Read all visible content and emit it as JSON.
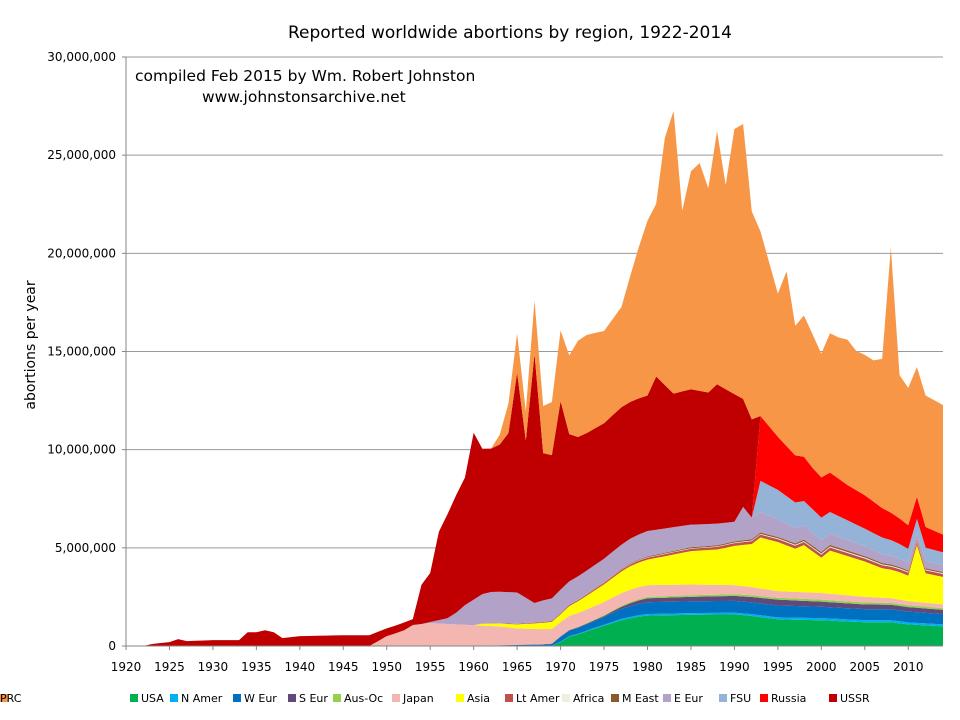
{
  "chart_data": {
    "type": "area",
    "stacked": true,
    "title": "Reported worldwide abortions by region, 1922-2014",
    "annotation_lines": [
      "compiled Feb 2015 by Wm. Robert Johnston",
      "www.johnstonsarchive.net"
    ],
    "xlabel": "",
    "ylabel": "abortions per year",
    "xlim": [
      1920,
      2014
    ],
    "ylim": [
      0,
      30000000
    ],
    "x_ticks": [
      "1920",
      "1925",
      "1930",
      "1935",
      "1940",
      "1945",
      "1950",
      "1955",
      "1960",
      "1965",
      "1970",
      "1975",
      "1980",
      "1985",
      "1990",
      "1995",
      "2000",
      "2005",
      "2010"
    ],
    "y_ticks": [
      "0",
      "5,000,000",
      "10,000,000",
      "15,000,000",
      "20,000,000",
      "25,000,000",
      "30,000,000"
    ],
    "grid": "horizontal",
    "legend_position": "bottom",
    "series": [
      {
        "name": "USA",
        "color": "#00b050",
        "points": [
          [
            1968,
            0
          ],
          [
            1969,
            20000
          ],
          [
            1970,
            200000
          ],
          [
            1971,
            480000
          ],
          [
            1972,
            590000
          ],
          [
            1973,
            740000
          ],
          [
            1974,
            900000
          ],
          [
            1975,
            1030000
          ],
          [
            1976,
            1180000
          ],
          [
            1977,
            1320000
          ],
          [
            1978,
            1410000
          ],
          [
            1979,
            1500000
          ],
          [
            1980,
            1550000
          ],
          [
            1985,
            1590000
          ],
          [
            1990,
            1610000
          ],
          [
            1992,
            1530000
          ],
          [
            1995,
            1360000
          ],
          [
            2000,
            1310000
          ],
          [
            2005,
            1210000
          ],
          [
            2008,
            1210000
          ],
          [
            2010,
            1100000
          ],
          [
            2014,
            1000000
          ]
        ]
      },
      {
        "name": "N Amer",
        "color": "#00b0f0",
        "points": [
          [
            1969,
            0
          ],
          [
            1970,
            20000
          ],
          [
            1975,
            50000
          ],
          [
            1980,
            80000
          ],
          [
            1990,
            90000
          ],
          [
            2000,
            110000
          ],
          [
            2014,
            100000
          ]
        ]
      },
      {
        "name": "W Eur",
        "color": "#0070c0",
        "points": [
          [
            1960,
            0
          ],
          [
            1965,
            50000
          ],
          [
            1969,
            80000
          ],
          [
            1970,
            250000
          ],
          [
            1974,
            350000
          ],
          [
            1976,
            450000
          ],
          [
            1978,
            550000
          ],
          [
            1980,
            600000
          ],
          [
            1985,
            600000
          ],
          [
            1990,
            600000
          ],
          [
            1995,
            600000
          ],
          [
            2000,
            580000
          ],
          [
            2005,
            560000
          ],
          [
            2010,
            550000
          ],
          [
            2014,
            520000
          ]
        ]
      },
      {
        "name": "S Eur",
        "color": "#604a7b",
        "points": [
          [
            1960,
            0
          ],
          [
            1970,
            20000
          ],
          [
            1975,
            50000
          ],
          [
            1978,
            150000
          ],
          [
            1980,
            200000
          ],
          [
            1985,
            230000
          ],
          [
            1990,
            250000
          ],
          [
            1993,
            280000
          ],
          [
            1995,
            300000
          ],
          [
            2000,
            260000
          ],
          [
            2005,
            240000
          ],
          [
            2010,
            230000
          ],
          [
            2014,
            220000
          ]
        ]
      },
      {
        "name": "Aus-Oc",
        "color": "#92d050",
        "points": [
          [
            1970,
            0
          ],
          [
            1975,
            40000
          ],
          [
            1980,
            70000
          ],
          [
            1990,
            90000
          ],
          [
            2000,
            100000
          ],
          [
            2014,
            90000
          ]
        ]
      },
      {
        "name": "Japan",
        "color": "#f4b6b0",
        "points": [
          [
            1948,
            0
          ],
          [
            1949,
            250000
          ],
          [
            1950,
            500000
          ],
          [
            1951,
            640000
          ],
          [
            1952,
            800000
          ],
          [
            1953,
            1070000
          ],
          [
            1955,
            1170000
          ],
          [
            1957,
            1120000
          ],
          [
            1960,
            1060000
          ],
          [
            1963,
            960000
          ],
          [
            1965,
            840000
          ],
          [
            1970,
            730000
          ],
          [
            1975,
            670000
          ],
          [
            1980,
            600000
          ],
          [
            1985,
            550000
          ],
          [
            1990,
            460000
          ],
          [
            1995,
            340000
          ],
          [
            2000,
            340000
          ],
          [
            2005,
            290000
          ],
          [
            2010,
            210000
          ],
          [
            2014,
            190000
          ]
        ]
      },
      {
        "name": "Asia",
        "color": "#ffff00",
        "points": [
          [
            1960,
            0
          ],
          [
            1961,
            100000
          ],
          [
            1965,
            200000
          ],
          [
            1970,
            400000
          ],
          [
            1975,
            900000
          ],
          [
            1978,
            1200000
          ],
          [
            1980,
            1300000
          ],
          [
            1985,
            1700000
          ],
          [
            1988,
            1800000
          ],
          [
            1990,
            2000000
          ],
          [
            1992,
            2200000
          ],
          [
            1993,
            2600000
          ],
          [
            1995,
            2500000
          ],
          [
            1997,
            2200000
          ],
          [
            1998,
            2400000
          ],
          [
            2000,
            1800000
          ],
          [
            2001,
            2200000
          ],
          [
            2003,
            2000000
          ],
          [
            2005,
            1800000
          ],
          [
            2007,
            1500000
          ],
          [
            2009,
            1400000
          ],
          [
            2010,
            1300000
          ],
          [
            2011,
            2900000
          ],
          [
            2012,
            1500000
          ],
          [
            2014,
            1400000
          ]
        ]
      },
      {
        "name": "Lt Amer",
        "color": "#c0504d",
        "points": [
          [
            1960,
            0
          ],
          [
            1970,
            50000
          ],
          [
            1980,
            100000
          ],
          [
            1990,
            140000
          ],
          [
            2000,
            160000
          ],
          [
            2014,
            150000
          ]
        ]
      },
      {
        "name": "Africa",
        "color": "#ebf1de",
        "points": [
          [
            1970,
            0
          ],
          [
            1980,
            20000
          ],
          [
            1990,
            30000
          ],
          [
            2000,
            50000
          ],
          [
            2014,
            40000
          ]
        ]
      },
      {
        "name": "M East",
        "color": "#8b5a2b",
        "points": [
          [
            1970,
            0
          ],
          [
            1980,
            40000
          ],
          [
            1990,
            60000
          ],
          [
            2000,
            80000
          ],
          [
            2014,
            60000
          ]
        ]
      },
      {
        "name": "E Eur",
        "color": "#b3a2c7",
        "points": [
          [
            1954,
            0
          ],
          [
            1955,
            50000
          ],
          [
            1957,
            300000
          ],
          [
            1958,
            600000
          ],
          [
            1959,
            1000000
          ],
          [
            1960,
            1300000
          ],
          [
            1961,
            1500000
          ],
          [
            1962,
            1600000
          ],
          [
            1965,
            1600000
          ],
          [
            1966,
            1300000
          ],
          [
            1967,
            1000000
          ],
          [
            1968,
            1100000
          ],
          [
            1970,
            1200000
          ],
          [
            1975,
            1200000
          ],
          [
            1980,
            1300000
          ],
          [
            1985,
            1150000
          ],
          [
            1988,
            1100000
          ],
          [
            1990,
            1000000
          ],
          [
            1991,
            1700000
          ],
          [
            1992,
            1100000
          ],
          [
            1995,
            900000
          ],
          [
            2000,
            600000
          ],
          [
            2005,
            500000
          ],
          [
            2010,
            400000
          ],
          [
            2014,
            350000
          ]
        ]
      },
      {
        "name": "FSU",
        "color": "#95b3d7",
        "points": [
          [
            1991,
            0
          ],
          [
            1992,
            0
          ],
          [
            1993,
            1600000
          ],
          [
            1995,
            1500000
          ],
          [
            1997,
            1300000
          ],
          [
            1999,
            1200000
          ],
          [
            2001,
            1100000
          ],
          [
            2003,
            1000000
          ],
          [
            2005,
            900000
          ],
          [
            2008,
            800000
          ],
          [
            2010,
            700000
          ],
          [
            2014,
            650000
          ]
        ]
      },
      {
        "name": "Russia",
        "color": "#ff0000",
        "points": [
          [
            1991,
            0
          ],
          [
            1992,
            0
          ],
          [
            1993,
            3300000
          ],
          [
            1995,
            2700000
          ],
          [
            1997,
            2400000
          ],
          [
            1999,
            2100000
          ],
          [
            2001,
            2000000
          ],
          [
            2003,
            1800000
          ],
          [
            2005,
            1700000
          ],
          [
            2007,
            1500000
          ],
          [
            2010,
            1200000
          ],
          [
            2014,
            900000
          ]
        ]
      },
      {
        "name": "USSR",
        "color": "#c00000",
        "points": [
          [
            1920,
            0
          ],
          [
            1922,
            0
          ],
          [
            1923,
            100000
          ],
          [
            1924,
            150000
          ],
          [
            1925,
            200000
          ],
          [
            1926,
            350000
          ],
          [
            1927,
            250000
          ],
          [
            1930,
            300000
          ],
          [
            1933,
            300000
          ],
          [
            1934,
            700000
          ],
          [
            1935,
            700000
          ],
          [
            1936,
            800000
          ],
          [
            1937,
            700000
          ],
          [
            1938,
            400000
          ],
          [
            1940,
            500000
          ],
          [
            1945,
            550000
          ],
          [
            1948,
            550000
          ],
          [
            1950,
            400000
          ],
          [
            1952,
            400000
          ],
          [
            1953,
            300000
          ],
          [
            1954,
            2000000
          ],
          [
            1955,
            2500000
          ],
          [
            1956,
            4500000
          ],
          [
            1957,
            5300000
          ],
          [
            1958,
            6000000
          ],
          [
            1959,
            6500000
          ],
          [
            1960,
            8500000
          ],
          [
            1961,
            7400000
          ],
          [
            1962,
            7300000
          ],
          [
            1963,
            7500000
          ],
          [
            1964,
            8100000
          ],
          [
            1965,
            11200000
          ],
          [
            1966,
            8000000
          ],
          [
            1967,
            12700000
          ],
          [
            1968,
            7500000
          ],
          [
            1969,
            7300000
          ],
          [
            1970,
            9600000
          ],
          [
            1971,
            7500000
          ],
          [
            1972,
            7100000
          ],
          [
            1973,
            7000000
          ],
          [
            1975,
            6900000
          ],
          [
            1977,
            7000000
          ],
          [
            1980,
            6900000
          ],
          [
            1981,
            7800000
          ],
          [
            1983,
            6800000
          ],
          [
            1985,
            6900000
          ],
          [
            1987,
            6700000
          ],
          [
            1988,
            7100000
          ],
          [
            1989,
            6800000
          ],
          [
            1990,
            6500000
          ],
          [
            1991,
            5500000
          ],
          [
            1992,
            5000000
          ],
          [
            1993,
            0
          ],
          [
            2014,
            0
          ]
        ]
      },
      {
        "name": "PRC",
        "color": "#f79646",
        "points": [
          [
            1960,
            0
          ],
          [
            1962,
            0
          ],
          [
            1963,
            500000
          ],
          [
            1964,
            1500000
          ],
          [
            1965,
            2000000
          ],
          [
            1966,
            1500000
          ],
          [
            1967,
            2700000
          ],
          [
            1968,
            2400000
          ],
          [
            1969,
            2700000
          ],
          [
            1970,
            3600000
          ],
          [
            1971,
            4000000
          ],
          [
            1972,
            4900000
          ],
          [
            1973,
            5000000
          ],
          [
            1975,
            4700000
          ],
          [
            1977,
            5100000
          ],
          [
            1979,
            7700000
          ],
          [
            1980,
            8900000
          ],
          [
            1981,
            8800000
          ],
          [
            1982,
            12600000
          ],
          [
            1983,
            14400000
          ],
          [
            1984,
            9200000
          ],
          [
            1985,
            11100000
          ],
          [
            1986,
            11600000
          ],
          [
            1987,
            10400000
          ],
          [
            1988,
            12900000
          ],
          [
            1989,
            10400000
          ],
          [
            1990,
            13500000
          ],
          [
            1991,
            14000000
          ],
          [
            1992,
            10600000
          ],
          [
            1993,
            9400000
          ],
          [
            1995,
            7300000
          ],
          [
            1996,
            8900000
          ],
          [
            1997,
            6600000
          ],
          [
            1998,
            7200000
          ],
          [
            1999,
            6800000
          ],
          [
            2000,
            6300000
          ],
          [
            2001,
            7100000
          ],
          [
            2002,
            7200000
          ],
          [
            2003,
            7400000
          ],
          [
            2004,
            7100000
          ],
          [
            2006,
            7200000
          ],
          [
            2007,
            7600000
          ],
          [
            2008,
            13500000
          ],
          [
            2009,
            7300000
          ],
          [
            2010,
            7000000
          ],
          [
            2011,
            6600000
          ],
          [
            2012,
            6700000
          ],
          [
            2014,
            6600000
          ]
        ]
      }
    ]
  }
}
